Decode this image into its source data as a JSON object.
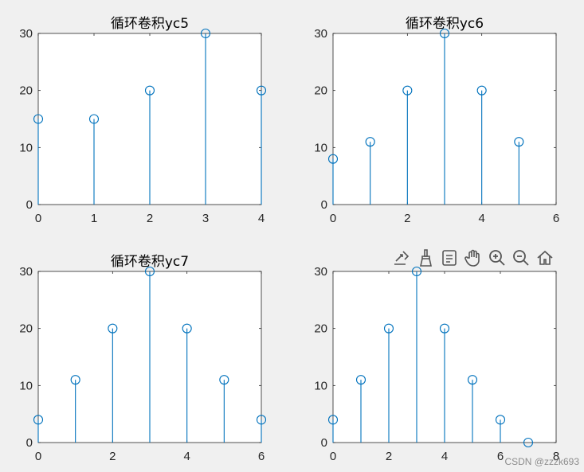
{
  "figure": {
    "background": "#f0f0f0",
    "stem_color": "#0072bd"
  },
  "chart_data": [
    {
      "type": "stem",
      "title": "循环卷积yc5",
      "x": [
        0,
        1,
        2,
        3,
        4
      ],
      "y": [
        15,
        15,
        20,
        30,
        20
      ],
      "xlim": [
        0,
        4
      ],
      "ylim": [
        0,
        30
      ],
      "xticks": [
        0,
        1,
        2,
        3,
        4
      ],
      "yticks": [
        0,
        10,
        20,
        30
      ]
    },
    {
      "type": "stem",
      "title": "循环卷积yc6",
      "x": [
        0,
        1,
        2,
        3,
        4,
        5
      ],
      "y": [
        8,
        11,
        20,
        30,
        20,
        11
      ],
      "xlim": [
        0,
        6
      ],
      "ylim": [
        0,
        30
      ],
      "xticks": [
        0,
        2,
        4,
        6
      ],
      "yticks": [
        0,
        10,
        20,
        30
      ]
    },
    {
      "type": "stem",
      "title": "循环卷积yc7",
      "x": [
        0,
        1,
        2,
        3,
        4,
        5,
        6
      ],
      "y": [
        4,
        11,
        20,
        30,
        20,
        11,
        4
      ],
      "xlim": [
        0,
        6
      ],
      "ylim": [
        0,
        30
      ],
      "xticks": [
        0,
        2,
        4,
        6
      ],
      "yticks": [
        0,
        10,
        20,
        30
      ]
    },
    {
      "type": "stem",
      "title": "",
      "x": [
        0,
        1,
        2,
        3,
        4,
        5,
        6,
        7
      ],
      "y": [
        4,
        11,
        20,
        30,
        20,
        11,
        4,
        0
      ],
      "xlim": [
        0,
        8
      ],
      "ylim": [
        0,
        30
      ],
      "xticks": [
        0,
        2,
        4,
        6,
        8
      ],
      "yticks": [
        0,
        10,
        20,
        30
      ]
    }
  ],
  "toolbar": {
    "buttons": [
      {
        "icon": "export-icon",
        "label": "Export"
      },
      {
        "icon": "brush-icon",
        "label": "Brush"
      },
      {
        "icon": "datatip-icon",
        "label": "Data Tips"
      },
      {
        "icon": "pan-icon",
        "label": "Pan"
      },
      {
        "icon": "zoom-in-icon",
        "label": "Zoom In"
      },
      {
        "icon": "zoom-out-icon",
        "label": "Zoom Out"
      },
      {
        "icon": "home-icon",
        "label": "Restore View"
      }
    ]
  },
  "watermark": "CSDN @zzzk693"
}
